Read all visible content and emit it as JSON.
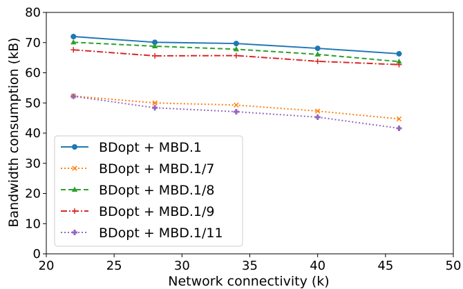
{
  "chart_data": {
    "type": "line",
    "title": "",
    "xlabel": "Network connectivity (k)",
    "ylabel": "Bandwidth consumption (kB)",
    "xlim": [
      20,
      50
    ],
    "ylim": [
      0,
      80
    ],
    "xticks": [
      "20",
      "25",
      "30",
      "35",
      "40",
      "45",
      "50"
    ],
    "yticks": [
      "0",
      "10",
      "20",
      "30",
      "40",
      "50",
      "60",
      "70",
      "80"
    ],
    "grid": false,
    "legend_position": "lower-left",
    "x": [
      22,
      28,
      34,
      40,
      46
    ],
    "series": [
      {
        "name": "BDopt + MBD.1",
        "values": [
          72.0,
          70.1,
          69.7,
          68.1,
          66.3
        ],
        "color": "#1f77b4",
        "dash": "solid",
        "marker": "circle"
      },
      {
        "name": "BDopt + MBD.1/7",
        "values": [
          52.3,
          50.0,
          49.3,
          47.3,
          44.7
        ],
        "color": "#ff7f0e",
        "dash": "dotted",
        "marker": "x"
      },
      {
        "name": "BDopt + MBD.1/8",
        "values": [
          70.1,
          68.8,
          67.8,
          66.1,
          63.7
        ],
        "color": "#2ca02c",
        "dash": "dashed",
        "marker": "triangle"
      },
      {
        "name": "BDopt + MBD.1/9",
        "values": [
          67.6,
          65.6,
          65.7,
          63.8,
          62.7
        ],
        "color": "#d62728",
        "dash": "dashdot",
        "marker": "plus"
      },
      {
        "name": "BDopt + MBD.1/11",
        "values": [
          52.2,
          48.4,
          47.1,
          45.3,
          41.6
        ],
        "color": "#9467bd",
        "dash": "dotted",
        "marker": "plus-filled"
      }
    ]
  }
}
